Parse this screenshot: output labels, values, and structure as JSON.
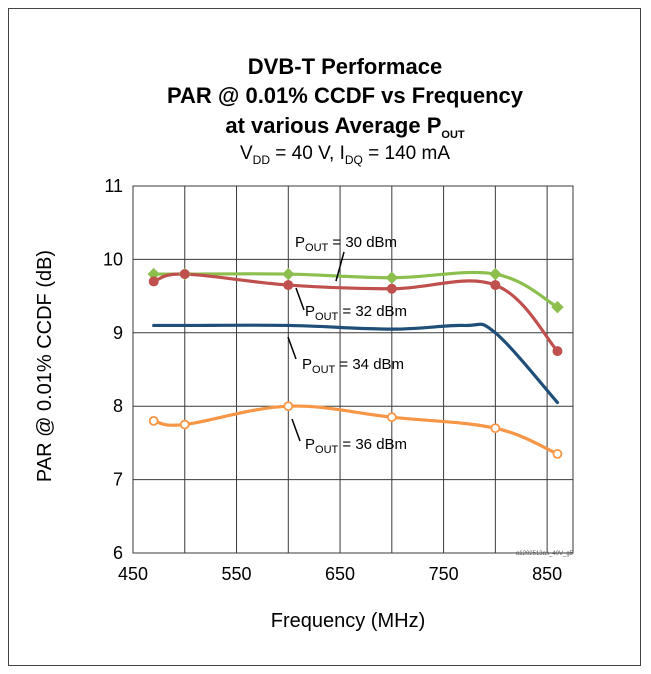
{
  "chart_data": {
    "type": "line",
    "title_lines": [
      "DVB-T Performace",
      "PAR @ 0.01% CCDF vs Frequency",
      "at various Average P"
    ],
    "title_line3_subscript": "OUT",
    "subtitle": {
      "v": "V",
      "v_sub": "DD",
      "v_rest": " = 40 V, I",
      "i_sub": "DQ",
      "i_rest": " = 140 mA"
    },
    "xlabel": "Frequency (MHz)",
    "ylabel": "PAR @ 0.01% CCDF (dB)",
    "xlim": [
      450,
      875
    ],
    "ylim": [
      6,
      11
    ],
    "x_ticks": [
      450,
      550,
      650,
      750,
      850
    ],
    "y_ticks": [
      6,
      7,
      8,
      9,
      10,
      11
    ],
    "grid": true,
    "code_label": "a1202513as_40V_g5",
    "series": [
      {
        "name": "P_OUT = 30 dBm",
        "color": "#8dbf4e",
        "marker": "diamond",
        "x": [
          470,
          500,
          600,
          700,
          800,
          860
        ],
        "y": [
          9.8,
          9.8,
          9.8,
          9.75,
          9.8,
          9.35
        ]
      },
      {
        "name": "P_OUT = 32 dBm",
        "color": "#c0504d",
        "marker": "circle",
        "x": [
          470,
          500,
          600,
          700,
          800,
          860
        ],
        "y": [
          9.7,
          9.8,
          9.65,
          9.6,
          9.65,
          8.75
        ]
      },
      {
        "name": "P_OUT = 34 dBm",
        "color": "#1f4e79",
        "marker": "none",
        "x": [
          470,
          500,
          600,
          700,
          770,
          800,
          860
        ],
        "y": [
          9.1,
          9.1,
          9.1,
          9.05,
          9.1,
          9.0,
          8.05
        ]
      },
      {
        "name": "P_OUT = 36 dBm",
        "color": "#f79646",
        "marker": "open-circle",
        "x": [
          470,
          500,
          600,
          700,
          800,
          860
        ],
        "y": [
          7.8,
          7.75,
          8.0,
          7.85,
          7.7,
          7.35
        ]
      }
    ],
    "annotations": [
      {
        "p": "P",
        "sub": "OUT",
        "rest": " = 30 dBm"
      },
      {
        "p": "P",
        "sub": "OUT",
        "rest": " = 32 dBm"
      },
      {
        "p": "P",
        "sub": "OUT",
        "rest": " = 34 dBm"
      },
      {
        "p": "P",
        "sub": "OUT",
        "rest": " = 36 dBm"
      }
    ]
  }
}
